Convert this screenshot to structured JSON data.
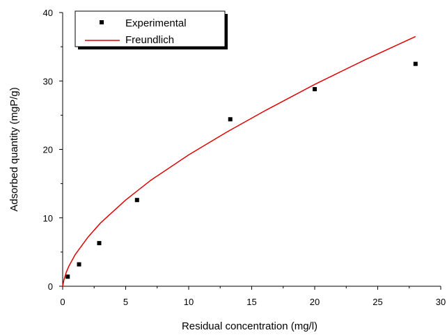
{
  "chart_data": {
    "type": "scatter",
    "title": "",
    "xlabel": "Residual concentration (mg/l)",
    "ylabel": "Adsorbed quantity (mgP/g)",
    "xlim": [
      0,
      30
    ],
    "ylim": [
      0,
      40
    ],
    "x_ticks": [
      "0",
      "5",
      "10",
      "15",
      "20",
      "25",
      "30"
    ],
    "y_ticks": [
      "0",
      "10",
      "20",
      "30",
      "40"
    ],
    "grid": false,
    "legend": {
      "position": "top-left",
      "entries": [
        "Experimental",
        "Freundlich"
      ]
    },
    "series": [
      {
        "name": "Experimental",
        "type": "scatter",
        "color": "#000000",
        "marker": "square",
        "x": [
          0.4,
          1.3,
          2.9,
          5.9,
          13.3,
          20.0,
          28.0
        ],
        "y": [
          1.4,
          3.2,
          6.3,
          12.6,
          24.4,
          28.8,
          32.5
        ]
      },
      {
        "name": "Freundlich",
        "type": "line",
        "color": "#e00000",
        "x": [
          0,
          0.1,
          0.3,
          0.5,
          1,
          2,
          3,
          5,
          7,
          10,
          13,
          16,
          20,
          24,
          28
        ],
        "y": [
          0,
          0.93,
          2.1,
          2.95,
          4.64,
          7.16,
          9.24,
          12.6,
          15.5,
          19.2,
          22.5,
          25.6,
          29.5,
          33.1,
          36.5
        ]
      }
    ]
  }
}
